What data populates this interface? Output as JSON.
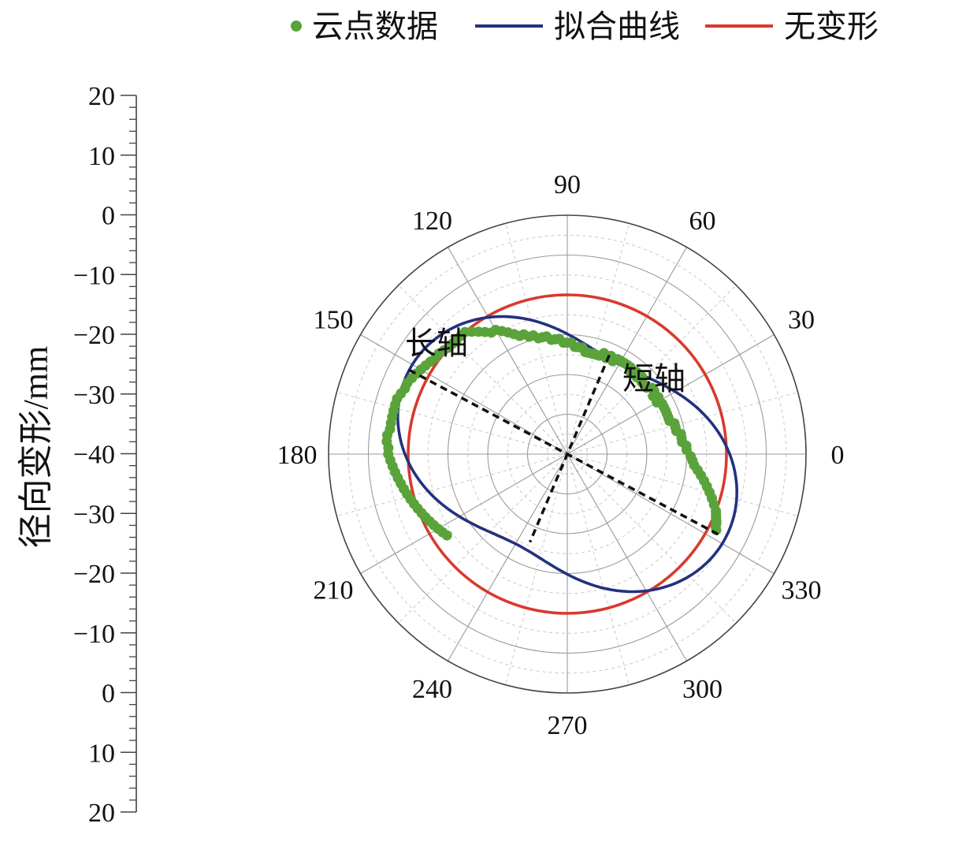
{
  "chart_data": {
    "type": "scatter",
    "subtype": "polar",
    "legend": {
      "placement": "top-center",
      "entries": [
        {
          "key": "cloud",
          "label": "云点数据",
          "marker": "dot",
          "color": "#5aa33a"
        },
        {
          "key": "fit",
          "label": "拟合曲线",
          "marker": "line",
          "color": "#23317f"
        },
        {
          "key": "ref",
          "label": "无变形",
          "marker": "line",
          "color": "#d83a2d"
        }
      ]
    },
    "radial_axis": {
      "title": "径向变形/mm",
      "tick_labels": [
        "20",
        "10",
        "0",
        "−10",
        "−20",
        "−30",
        "−40",
        "−30",
        "−20",
        "−10",
        "0",
        "10",
        "20"
      ],
      "range": [
        -40,
        20
      ],
      "minor_ticks_per_major": 4
    },
    "angular_axis": {
      "unit": "degree",
      "tick_labels": [
        {
          "angle": 0,
          "label": "0"
        },
        {
          "angle": 30,
          "label": "30"
        },
        {
          "angle": 60,
          "label": "60"
        },
        {
          "angle": 90,
          "label": "90"
        },
        {
          "angle": 120,
          "label": "120"
        },
        {
          "angle": 150,
          "label": "150"
        },
        {
          "angle": 180,
          "label": "180"
        },
        {
          "angle": 210,
          "label": "210"
        },
        {
          "angle": 240,
          "label": "240"
        },
        {
          "angle": 270,
          "label": "270"
        },
        {
          "angle": 300,
          "label": "300"
        },
        {
          "angle": 330,
          "label": "330"
        }
      ]
    },
    "grid": true,
    "annotations": [
      {
        "key": "major",
        "label": "长轴",
        "angle_deg": [
          152,
          332
        ],
        "deformation_mm": [
          5,
          3
        ]
      },
      {
        "key": "minor",
        "label": "短轴",
        "angle_deg": [
          67,
          247
        ],
        "deformation_mm": [
          -13,
          -16
        ]
      }
    ],
    "series": [
      {
        "name": "云点数据",
        "type": "scatter",
        "color": "#5aa33a",
        "angle_deg": [
          333,
          334,
          335,
          336,
          337,
          338,
          339,
          341,
          343,
          345,
          347,
          349,
          351,
          353,
          355,
          357,
          359,
          2,
          4,
          6,
          8,
          10,
          12,
          14,
          16,
          18,
          20,
          22,
          24,
          26,
          28,
          30,
          32,
          34,
          36,
          38,
          40,
          42,
          44,
          46,
          48,
          50,
          52,
          54,
          56,
          58,
          60,
          62,
          64,
          66,
          68,
          70,
          72,
          74,
          76,
          78,
          80,
          82,
          84,
          86,
          88,
          90,
          92,
          94,
          96,
          98,
          100,
          102,
          104,
          106,
          108,
          110,
          112,
          114,
          116,
          118,
          120,
          122,
          124,
          126,
          128,
          130,
          132,
          134,
          136,
          138,
          140,
          142,
          144,
          146,
          148,
          150,
          152,
          154,
          156,
          158,
          160,
          162,
          164,
          166,
          168,
          170,
          172,
          174,
          176,
          178,
          180,
          182,
          184,
          186,
          188,
          190,
          192,
          194,
          196,
          198,
          200,
          202,
          204,
          206,
          208,
          210,
          212,
          214
        ],
        "deformation_mm": [
          2,
          1.5,
          1.3,
          1,
          0.6,
          0.3,
          0,
          -1,
          -2,
          -3,
          -4,
          -5,
          -6,
          -7,
          -8,
          -8.5,
          -9,
          -10,
          -10,
          -11,
          -11,
          -11,
          -12,
          -12,
          -12,
          -13,
          -13,
          -13,
          -13,
          -13,
          -13,
          -14,
          -13,
          -14,
          -13,
          -13,
          -14,
          -14,
          -14,
          -13,
          -14,
          -13,
          -14,
          -13,
          -13,
          -13,
          -13,
          -13,
          -14,
          -13,
          -14,
          -13,
          -14,
          -14,
          -14,
          -14,
          -14,
          -13,
          -13,
          -13,
          -12,
          -12,
          -12,
          -11,
          -11,
          -11,
          -10,
          -10,
          -10,
          -9,
          -9,
          -8,
          -8,
          -7,
          -6,
          -5,
          -4,
          -4,
          -3,
          -2,
          -1,
          0,
          0,
          0,
          0,
          0,
          0.5,
          1,
          1,
          1.5,
          2,
          2.5,
          3,
          3.5,
          4,
          4,
          4.5,
          5,
          5,
          5,
          5,
          5,
          5,
          5.5,
          5.5,
          5,
          5,
          4.5,
          4,
          3.5,
          3,
          2.5,
          2,
          1.5,
          1,
          0.5,
          0,
          -0.5,
          -1,
          -1.5,
          -2,
          -2.5,
          -3,
          -3.5
        ]
      },
      {
        "name": "拟合曲线",
        "type": "line",
        "color": "#23317f",
        "model": {
          "base_mm": -4.5,
          "amplitude_mm": 9.5,
          "major_axis_deg": 152
        },
        "angle_deg": [
          0,
          359
        ],
        "step_deg": 2
      },
      {
        "name": "无变形",
        "type": "line",
        "color": "#d83a2d",
        "deformation_mm": 0
      }
    ]
  }
}
